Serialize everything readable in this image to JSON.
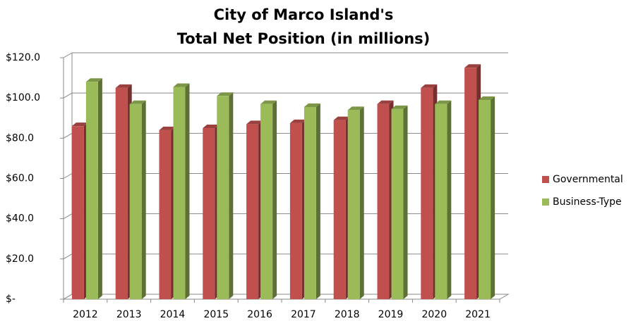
{
  "chart_data": {
    "type": "bar",
    "title": [
      "City of Marco Island's",
      "Total Net Position (in millions)"
    ],
    "categories": [
      "2012",
      "2013",
      "2014",
      "2015",
      "2016",
      "2017",
      "2018",
      "2019",
      "2020",
      "2021"
    ],
    "series": [
      {
        "name": "Governmental",
        "color": "#c0504d",
        "values": [
          86,
          105,
          84,
          85,
          87,
          87.5,
          89,
          97,
          105,
          115
        ]
      },
      {
        "name": "Business-Type",
        "color": "#9bbb59",
        "values": [
          108,
          97,
          105.5,
          101,
          97,
          95.5,
          94,
          94.5,
          97,
          99
        ]
      }
    ],
    "ylim": [
      0,
      120
    ],
    "yticks": [
      {
        "value": 0,
        "label": "$-"
      },
      {
        "value": 20,
        "label": "$20.0"
      },
      {
        "value": 40,
        "label": "$40.0"
      },
      {
        "value": 60,
        "label": "$60.0"
      },
      {
        "value": 80,
        "label": "$80.0"
      },
      {
        "value": 100,
        "label": "$100.0"
      },
      {
        "value": 120,
        "label": "$120.0"
      }
    ],
    "grid": true,
    "legend": "right"
  }
}
